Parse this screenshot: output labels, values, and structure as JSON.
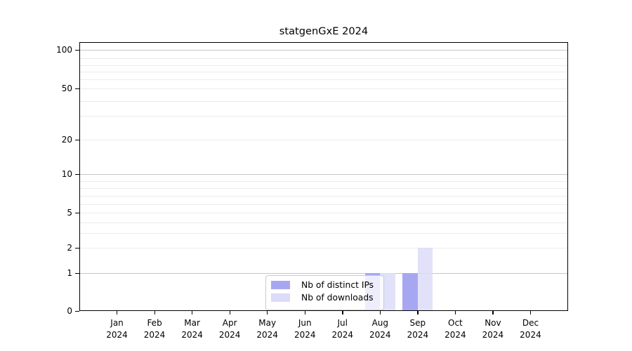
{
  "chart_data": {
    "type": "bar",
    "title": "statgenGxE 2024",
    "categories": [
      "Jan",
      "Feb",
      "Mar",
      "Apr",
      "May",
      "Jun",
      "Jul",
      "Aug",
      "Sep",
      "Oct",
      "Nov",
      "Dec"
    ],
    "year_label": "2024",
    "series": [
      {
        "name": "Nb of distinct IPs",
        "color": "#a7a7f1",
        "values": [
          0,
          0,
          0,
          0,
          0,
          0,
          0,
          1,
          1,
          0,
          0,
          0
        ]
      },
      {
        "name": "Nb of downloads",
        "color": "#dcdcf8",
        "values": [
          0,
          0,
          0,
          0,
          0,
          0,
          0,
          1,
          2,
          0,
          0,
          0
        ]
      }
    ],
    "y_ticks": [
      0,
      1,
      2,
      5,
      10,
      20,
      50,
      100
    ],
    "y_scale": "pseudo-log",
    "ylim": [
      0,
      110
    ],
    "xlabel": "",
    "ylabel": "",
    "grid": true,
    "legend_position": "bottom-center",
    "colors": {
      "distinct_ips": "#a7a7f1",
      "downloads": "#dcdcf8",
      "major_grid": "#c6c6c6",
      "minor_grid": "#ececec",
      "frame": "#000000"
    }
  }
}
